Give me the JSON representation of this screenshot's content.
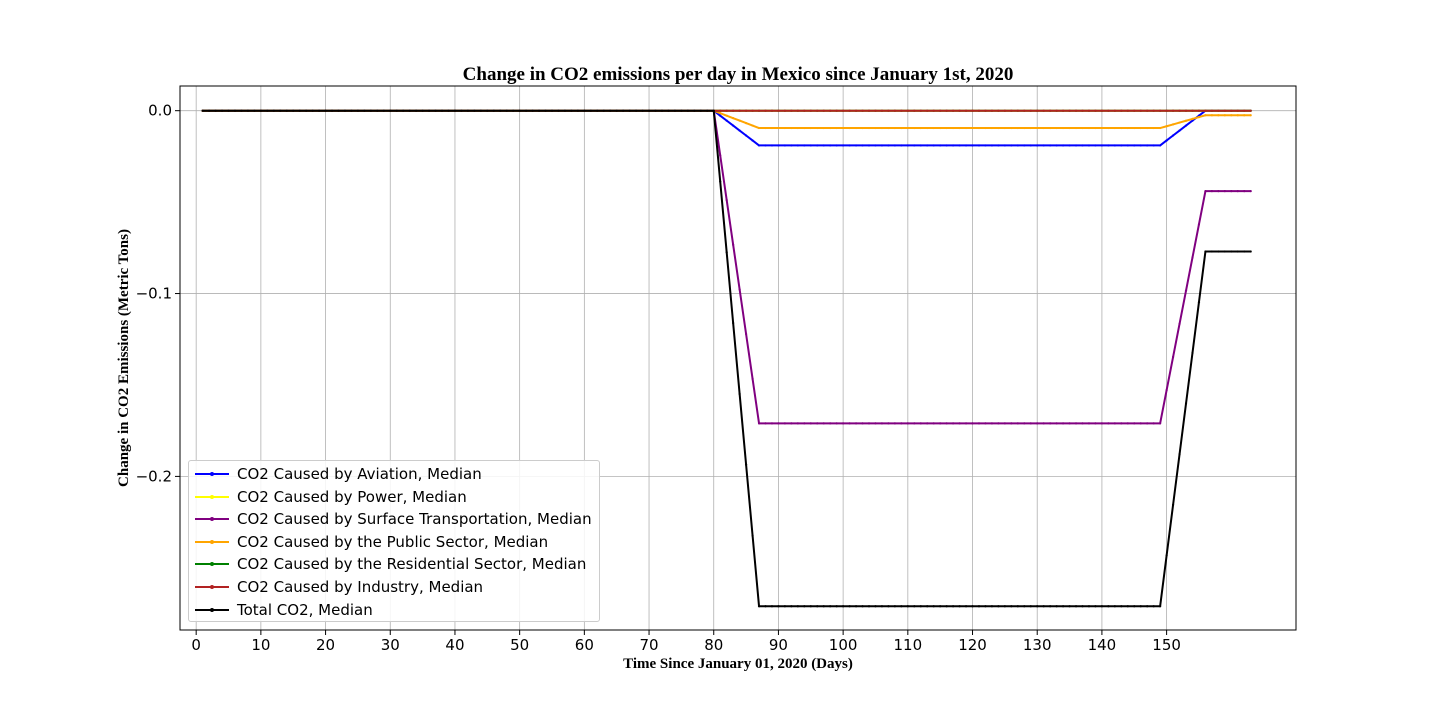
{
  "chart_data": {
    "type": "line",
    "title": "Change in CO2 emissions per day in Mexico since January 1st, 2020",
    "xlabel": "Time Since January 01, 2020 (Days)",
    "ylabel": "Change in CO2 Emissions (Metric Tons)",
    "xlim": [
      -2.5,
      170
    ],
    "ylim": [
      -0.284,
      0.0135
    ],
    "xticks": [
      0,
      10,
      20,
      30,
      40,
      50,
      60,
      70,
      80,
      90,
      100,
      110,
      120,
      130,
      140,
      150
    ],
    "yticks": [
      0.0,
      -0.1,
      -0.2
    ],
    "ytick_labels": [
      "0.0",
      "−0.1",
      "−0.2"
    ],
    "grid": true,
    "legend_position": "lower-left",
    "series": [
      {
        "name": "CO2 Caused by Aviation, Median",
        "color": "#0000ff",
        "points": [
          [
            1,
            0
          ],
          [
            80,
            0
          ],
          [
            87,
            -0.019
          ],
          [
            149,
            -0.019
          ],
          [
            156,
            0
          ],
          [
            163,
            0
          ]
        ]
      },
      {
        "name": "CO2 Caused by Power, Median",
        "color": "#ffff00",
        "points": [
          [
            1,
            0
          ],
          [
            163,
            0
          ]
        ]
      },
      {
        "name": "CO2 Caused by Surface Transportation, Median",
        "color": "#800080",
        "points": [
          [
            1,
            0
          ],
          [
            80,
            0
          ],
          [
            87,
            -0.171
          ],
          [
            149,
            -0.171
          ],
          [
            156,
            -0.044
          ],
          [
            163,
            -0.044
          ]
        ]
      },
      {
        "name": "CO2 Caused by the Public Sector, Median",
        "color": "#ffa500",
        "points": [
          [
            1,
            0
          ],
          [
            80,
            0
          ],
          [
            87,
            -0.0095
          ],
          [
            149,
            -0.0095
          ],
          [
            156,
            -0.0025
          ],
          [
            163,
            -0.0025
          ]
        ]
      },
      {
        "name": "CO2 Caused by the Residential Sector, Median",
        "color": "#008000",
        "points": [
          [
            1,
            0
          ],
          [
            163,
            0
          ]
        ]
      },
      {
        "name": "CO2 Caused by Industry, Median",
        "color": "#b22222",
        "points": [
          [
            1,
            0
          ],
          [
            163,
            0
          ]
        ]
      },
      {
        "name": "Total CO2, Median",
        "color": "#000000",
        "points": [
          [
            1,
            0
          ],
          [
            80,
            0
          ],
          [
            87,
            -0.271
          ],
          [
            149,
            -0.271
          ],
          [
            156,
            -0.077
          ],
          [
            163,
            -0.077
          ]
        ]
      }
    ]
  }
}
